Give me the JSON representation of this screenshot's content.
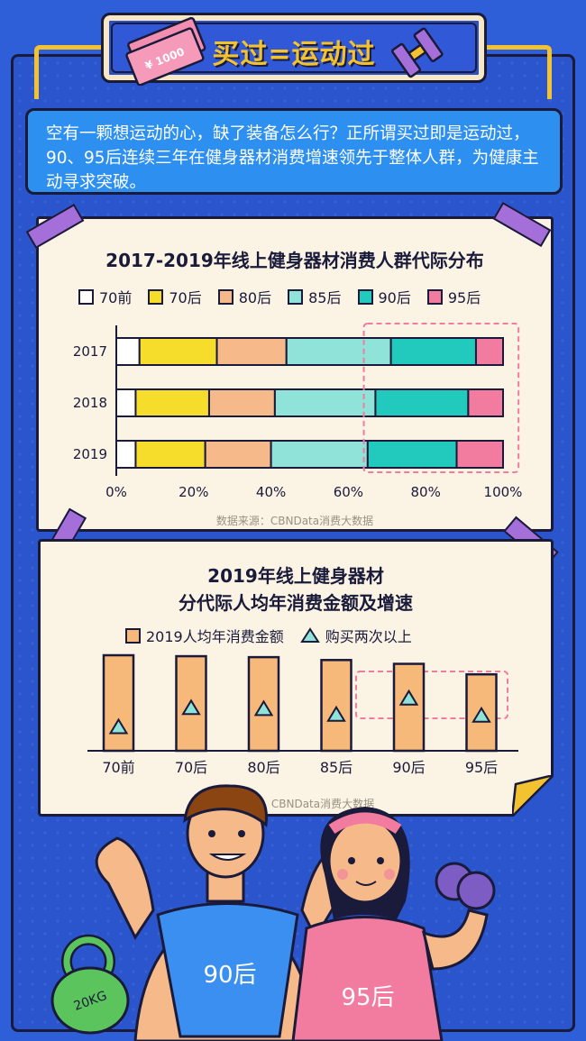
{
  "header": {
    "title": "买过=运动过",
    "money_text": "¥ 1000"
  },
  "intro": {
    "text": "空有一颗想运动的心，缺了装备怎么行？正所谓买过即是运动过，90、95后连续三年在健身器材消费增速领先于整体人群，为健康主动寻求突破。"
  },
  "colors": {
    "70前": "#ffffff",
    "70后": "#f7dd2b",
    "80后": "#f5b98a",
    "85后": "#8fe3d8",
    "90后": "#22c9bd",
    "95后": "#f27ba0",
    "bar_orange": "#f7b97a",
    "triangle": "#8fe3d8",
    "highlight": "#f27ba0"
  },
  "chart_data": [
    {
      "type": "bar",
      "orientation": "horizontal-stacked",
      "title": "2017-2019年线上健身器材消费人群代际分布",
      "categories": [
        "2017",
        "2018",
        "2019"
      ],
      "series": [
        {
          "name": "70前",
          "values": [
            6,
            5,
            5
          ]
        },
        {
          "name": "70后",
          "values": [
            20,
            19,
            18
          ]
        },
        {
          "name": "80后",
          "values": [
            18,
            17,
            17
          ]
        },
        {
          "name": "85后",
          "values": [
            27,
            26,
            25
          ]
        },
        {
          "name": "90后",
          "values": [
            22,
            24,
            23
          ]
        },
        {
          "name": "95后",
          "values": [
            7,
            9,
            12
          ]
        }
      ],
      "x_ticks": [
        "0%",
        "20%",
        "40%",
        "60%",
        "80%",
        "100%"
      ],
      "xlim": [
        0,
        100
      ],
      "legend": "top",
      "source": "数据来源：CBNData消费大数据"
    },
    {
      "type": "bar",
      "title_lines": [
        "2019年线上健身器材",
        "分代际人均年消费金额及增速"
      ],
      "categories": [
        "70前",
        "70后",
        "80后",
        "85后",
        "90后",
        "95后"
      ],
      "series": [
        {
          "name": "2019人均年消费金额",
          "values": [
            100,
            99,
            98,
            95,
            91,
            80
          ]
        },
        {
          "name": "购买两次以上",
          "values": [
            25,
            45,
            44,
            38,
            55,
            37
          ]
        }
      ],
      "ylim": [
        0,
        100
      ],
      "legend": "top",
      "source": "数据来源：CBNData消费大数据"
    }
  ],
  "illustration": {
    "man_shirt": "90后",
    "woman_shirt": "95后",
    "kettlebell": "20KG"
  }
}
